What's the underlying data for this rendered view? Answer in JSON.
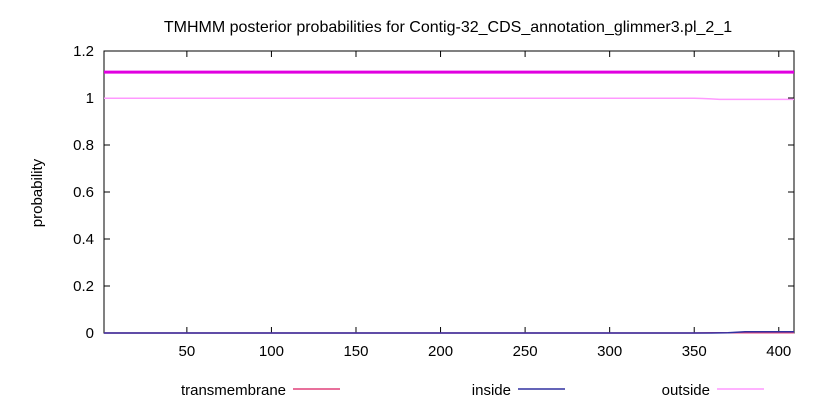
{
  "chart_data": {
    "type": "line",
    "title": "TMHMM posterior probabilities for Contig-32_CDS_annotation_glimmer3.pl_2_1",
    "xlabel": "",
    "ylabel": "probability",
    "xlim": [
      1,
      409
    ],
    "ylim": [
      0,
      1.2
    ],
    "xticks": [
      50,
      100,
      150,
      200,
      250,
      300,
      350,
      400
    ],
    "yticks": [
      0,
      0.2,
      0.4,
      0.6,
      0.8,
      1,
      1.2
    ],
    "ytick_labels": [
      "0",
      "0.2",
      "0.4",
      "0.6",
      "0.8",
      "1",
      "1.2"
    ],
    "grid": false,
    "legend_position": "bottom",
    "series": [
      {
        "name": "transmembrane",
        "color": "#e0407a",
        "x": [
          1,
          350,
          360,
          370,
          380,
          409
        ],
        "y": [
          0,
          0,
          0.001,
          0.001,
          0.001,
          0.001
        ]
      },
      {
        "name": "inside",
        "color": "#3030a0",
        "x": [
          1,
          350,
          360,
          370,
          375,
          380,
          409
        ],
        "y": [
          0,
          0,
          0,
          0.001,
          0.003,
          0.005,
          0.005
        ]
      },
      {
        "name": "outside",
        "color": "#ff99ff",
        "x": [
          1,
          350,
          355,
          360,
          365,
          409
        ],
        "y": [
          0.999,
          0.999,
          0.998,
          0.996,
          0.994,
          0.994
        ]
      }
    ],
    "annotations": [
      {
        "type": "hline",
        "y": 1.11,
        "color": "#e000e0"
      }
    ]
  }
}
